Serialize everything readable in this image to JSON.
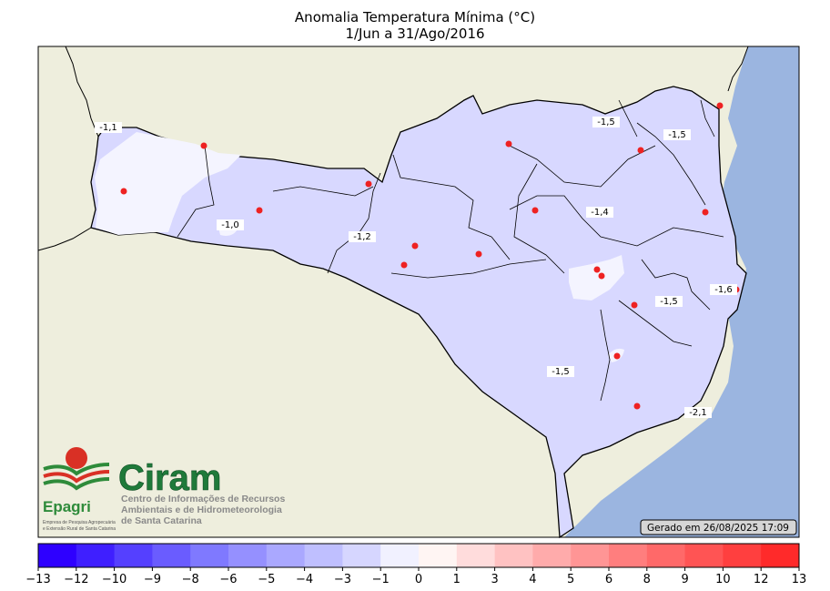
{
  "title_line1": "Anomalia Temperatura Mínima (°C)",
  "title_line2": "1/Jun a 31/Ago/2016",
  "generated": "Gerado em 26/08/2025 17:09",
  "logo": {
    "brand": "Ciram",
    "org_line1": "Centro de Informações de Recursos",
    "org_line2": "Ambientais e de Hidrometeorologia",
    "org_line3": "de Santa Catarina",
    "epagri": "Epagri",
    "epagri_sub1": "Empresa de Pesquisa Agropecuária",
    "epagri_sub2": "e Extensão Rural de Santa Catarina"
  },
  "contour_labels": [
    "-1,1",
    "-1,0",
    "-1,2",
    "-1,5",
    "-1,5",
    "-1,4",
    "-1,5",
    "-1,6",
    "-1,5",
    "-2,1"
  ],
  "colorbar": {
    "ticks": [
      "−13",
      "−12",
      "−10",
      "−9",
      "−8",
      "−6",
      "−5",
      "−4",
      "−3",
      "−1",
      "0",
      "1",
      "3",
      "4",
      "5",
      "6",
      "8",
      "9",
      "10",
      "12",
      "13"
    ],
    "colors": [
      "#2e00ff",
      "#3f1fff",
      "#5540ff",
      "#6a5cff",
      "#7f79ff",
      "#9590ff",
      "#aaa8ff",
      "#bfbfff",
      "#d6d6ff",
      "#f1f1ff",
      "#fff5f3",
      "#ffdcdc",
      "#ffc2c2",
      "#ffabab",
      "#ff9595",
      "#ff7e7e",
      "#ff6969",
      "#ff5454",
      "#ff3f3f",
      "#ff2a2a"
    ]
  },
  "stations_count": 18,
  "colors": {
    "ocean": "#9bb5e0",
    "land": "#eeeedd",
    "state_fill": "#d8d8ff",
    "light_fill": "#f4f4ff",
    "station": "#ee2222"
  }
}
